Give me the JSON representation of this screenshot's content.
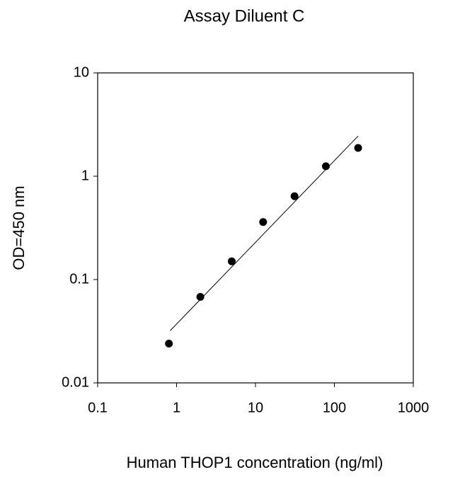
{
  "chart_data": {
    "type": "scatter",
    "title": "Assay Diluent C",
    "x_label": "Human THOP1 concentration (ng/ml)",
    "y_label": "OD=450 nm",
    "log_x": true,
    "log_y": true,
    "xlim": [
      0.1,
      1000
    ],
    "ylim": [
      0.01,
      10
    ],
    "xticks": [
      0.1,
      1,
      10,
      100,
      1000
    ],
    "yticks": [
      0.01,
      0.1,
      1,
      10
    ],
    "series": [
      {
        "color": "#000000",
        "x": [
          0.8,
          2,
          5,
          12.5,
          31.25,
          78,
          200
        ],
        "values": [
          0.024,
          0.068,
          0.15,
          0.36,
          0.64,
          1.25,
          1.88
        ]
      }
    ],
    "fit_line": {
      "color": "#000000",
      "x": [
        0.83,
        200
      ],
      "values": [
        0.032,
        2.45
      ]
    }
  }
}
